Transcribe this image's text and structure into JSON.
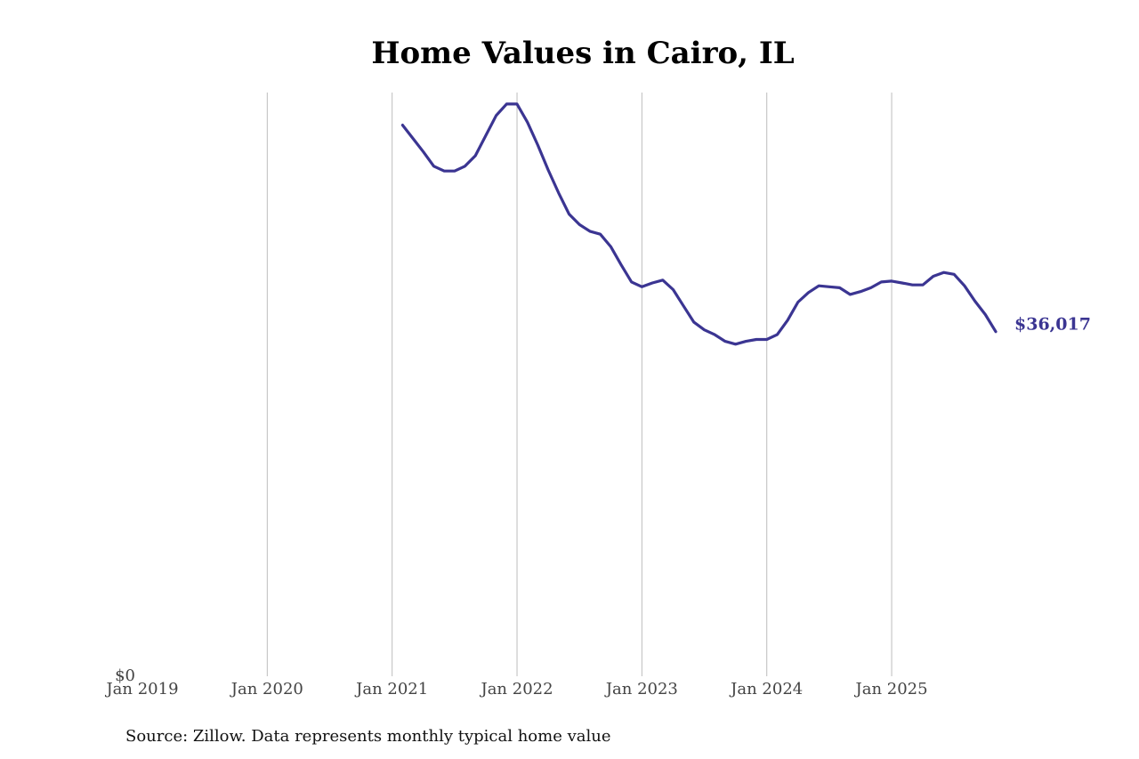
{
  "chart_data": {
    "type": "line",
    "title": "Home Values in Cairo, IL",
    "source": "Source: Zillow. Data represents monthly typical home value",
    "x": [
      "2021-02",
      "2021-03",
      "2021-04",
      "2021-05",
      "2021-06",
      "2021-07",
      "2021-08",
      "2021-09",
      "2021-10",
      "2021-11",
      "2021-12",
      "2022-01",
      "2022-02",
      "2022-03",
      "2022-04",
      "2022-05",
      "2022-06",
      "2022-07",
      "2022-08",
      "2022-09",
      "2022-10",
      "2022-11",
      "2022-12",
      "2023-01",
      "2023-02",
      "2023-03",
      "2023-04",
      "2023-05",
      "2023-06",
      "2023-07",
      "2023-08",
      "2023-09",
      "2023-10",
      "2023-11",
      "2023-12",
      "2024-01",
      "2024-02",
      "2024-03",
      "2024-04",
      "2024-05",
      "2024-06",
      "2024-07",
      "2024-08",
      "2024-09",
      "2024-10",
      "2024-11",
      "2024-12",
      "2025-01",
      "2025-02",
      "2025-03",
      "2025-04",
      "2025-05",
      "2025-06",
      "2025-07",
      "2025-08",
      "2025-09",
      "2025-10",
      "2025-11"
    ],
    "series": [
      {
        "name": "Cairo, IL",
        "color": "#3b3592",
        "values": [
          57600,
          56200,
          54800,
          53300,
          52800,
          52800,
          53300,
          54400,
          56500,
          58600,
          59800,
          59800,
          57900,
          55500,
          52900,
          50500,
          48300,
          47200,
          46500,
          46200,
          44900,
          43000,
          41200,
          40700,
          41100,
          41400,
          40400,
          38700,
          37000,
          36200,
          35700,
          35000,
          34700,
          35000,
          35200,
          35200,
          35700,
          37200,
          39100,
          40100,
          40800,
          40700,
          40600,
          39900,
          40200,
          40600,
          41200,
          41300,
          41100,
          40900,
          40900,
          41800,
          42200,
          42000,
          40800,
          39200,
          37800,
          36017
        ],
        "value_labels": [
          null,
          null,
          null,
          null,
          null,
          null,
          null,
          null,
          null,
          null,
          null,
          null,
          null,
          null,
          null,
          null,
          null,
          null,
          null,
          null,
          null,
          null,
          null,
          null,
          null,
          null,
          null,
          null,
          null,
          null,
          null,
          null,
          null,
          null,
          null,
          null,
          null,
          null,
          null,
          null,
          null,
          null,
          null,
          null,
          null,
          null,
          null,
          null,
          null,
          null,
          null,
          null,
          null,
          null,
          null,
          null,
          null,
          "$36,017"
        ]
      }
    ],
    "xlim": [
      "2019-01",
      "2025-11"
    ],
    "xticks": [
      {
        "value": "2019-01",
        "label": "Jan 2019"
      },
      {
        "value": "2020-01",
        "label": "Jan 2020"
      },
      {
        "value": "2021-01",
        "label": "Jan 2021"
      },
      {
        "value": "2022-01",
        "label": "Jan 2022"
      },
      {
        "value": "2023-01",
        "label": "Jan 2023"
      },
      {
        "value": "2024-01",
        "label": "Jan 2024"
      },
      {
        "value": "2025-01",
        "label": "Jan 2025"
      }
    ],
    "ylim": [
      0,
      61000
    ],
    "yticks": [
      {
        "value": 0,
        "label": "$0"
      }
    ],
    "grid": true
  }
}
